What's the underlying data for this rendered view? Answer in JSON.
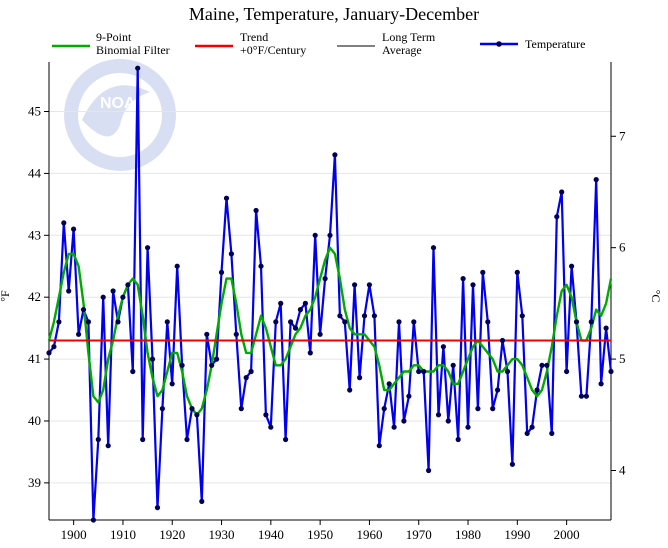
{
  "chart_data": {
    "type": "line",
    "title": "Maine, Temperature, January-December",
    "ylabel_left": "°F",
    "ylabel_right": "°C",
    "xlim": [
      1895,
      2009
    ],
    "ylim": [
      38.4,
      45.8
    ],
    "x_ticks": [
      1900,
      1910,
      1920,
      1930,
      1940,
      1950,
      1960,
      1970,
      1980,
      1990,
      2000
    ],
    "y_ticks_f": [
      39,
      40,
      41,
      42,
      43,
      44,
      45
    ],
    "y_ticks_c": [
      4,
      5,
      6,
      7
    ],
    "legend": {
      "filter_line1": "9-Point",
      "filter_line2": "Binomial Filter",
      "trend_line1": "Trend",
      "trend_line2": "+0°F/Century",
      "avg_line1": "Long Term",
      "avg_line2": "Average",
      "temp": "Temperature"
    },
    "colors": {
      "temperature": "#0000ee",
      "marker": "#000055",
      "filter": "#00aa00",
      "trend": "#ee0000",
      "average": "#808080"
    },
    "long_term_average": 41.3,
    "trend_value": 41.3,
    "series": [
      {
        "name": "Temperature",
        "x": [
          1895,
          1896,
          1897,
          1898,
          1899,
          1900,
          1901,
          1902,
          1903,
          1904,
          1905,
          1906,
          1907,
          1908,
          1909,
          1910,
          1911,
          1912,
          1913,
          1914,
          1915,
          1916,
          1917,
          1918,
          1919,
          1920,
          1921,
          1922,
          1923,
          1924,
          1925,
          1926,
          1927,
          1928,
          1929,
          1930,
          1931,
          1932,
          1933,
          1934,
          1935,
          1936,
          1937,
          1938,
          1939,
          1940,
          1941,
          1942,
          1943,
          1944,
          1945,
          1946,
          1947,
          1948,
          1949,
          1950,
          1951,
          1952,
          1953,
          1954,
          1955,
          1956,
          1957,
          1958,
          1959,
          1960,
          1961,
          1962,
          1963,
          1964,
          1965,
          1966,
          1967,
          1968,
          1969,
          1970,
          1971,
          1972,
          1973,
          1974,
          1975,
          1976,
          1977,
          1978,
          1979,
          1980,
          1981,
          1982,
          1983,
          1984,
          1985,
          1986,
          1987,
          1988,
          1989,
          1990,
          1991,
          1992,
          1993,
          1994,
          1995,
          1996,
          1997,
          1998,
          1999,
          2000,
          2001,
          2002,
          2003,
          2004,
          2005,
          2006,
          2007,
          2008,
          2009
        ],
        "values": [
          41.1,
          41.2,
          41.6,
          43.2,
          42.1,
          43.1,
          41.4,
          41.8,
          41.6,
          38.4,
          39.7,
          42.0,
          39.6,
          42.1,
          41.6,
          42.0,
          42.2,
          40.8,
          45.7,
          39.7,
          42.8,
          41.0,
          38.6,
          40.2,
          41.6,
          40.6,
          42.5,
          40.9,
          39.7,
          40.2,
          40.1,
          38.7,
          41.4,
          40.9,
          41.0,
          42.4,
          43.6,
          42.7,
          41.4,
          40.2,
          40.7,
          40.8,
          43.4,
          42.5,
          40.1,
          39.9,
          41.6,
          41.9,
          39.7,
          41.6,
          41.5,
          41.8,
          41.9,
          41.1,
          43.0,
          41.4,
          42.3,
          43.0,
          44.3,
          41.7,
          41.6,
          40.5,
          42.2,
          40.7,
          41.7,
          42.2,
          41.7,
          39.6,
          40.2,
          40.6,
          39.9,
          41.6,
          40.0,
          40.4,
          41.6,
          40.8,
          40.8,
          39.2,
          42.8,
          40.1,
          41.2,
          40.0,
          40.9,
          39.7,
          42.3,
          39.9,
          42.2,
          40.2,
          42.4,
          41.6,
          40.2,
          40.5,
          41.3,
          40.8,
          39.3,
          42.4,
          41.7,
          39.8,
          39.9,
          40.5,
          40.9,
          40.9,
          39.8,
          43.3,
          43.7,
          40.8,
          42.5,
          41.6,
          40.4,
          40.4,
          41.6,
          43.9,
          40.6,
          41.5,
          40.8
        ]
      },
      {
        "name": "9-Point Binomial Filter",
        "x": [
          1895,
          1896,
          1897,
          1898,
          1899,
          1900,
          1901,
          1902,
          1903,
          1904,
          1905,
          1906,
          1907,
          1908,
          1909,
          1910,
          1911,
          1912,
          1913,
          1914,
          1915,
          1916,
          1917,
          1918,
          1919,
          1920,
          1921,
          1922,
          1923,
          1924,
          1925,
          1926,
          1927,
          1928,
          1929,
          1930,
          1931,
          1932,
          1933,
          1934,
          1935,
          1936,
          1937,
          1938,
          1939,
          1940,
          1941,
          1942,
          1943,
          1944,
          1945,
          1946,
          1947,
          1948,
          1949,
          1950,
          1951,
          1952,
          1953,
          1954,
          1955,
          1956,
          1957,
          1958,
          1959,
          1960,
          1961,
          1962,
          1963,
          1964,
          1965,
          1966,
          1967,
          1968,
          1969,
          1970,
          1971,
          1972,
          1973,
          1974,
          1975,
          1976,
          1977,
          1978,
          1979,
          1980,
          1981,
          1982,
          1983,
          1984,
          1985,
          1986,
          1987,
          1988,
          1989,
          1990,
          1991,
          1992,
          1993,
          1994,
          1995,
          1996,
          1997,
          1998,
          1999,
          2000,
          2001,
          2002,
          2003,
          2004,
          2005,
          2006,
          2007,
          2008,
          2009
        ],
        "values": [
          41.3,
          41.6,
          42.0,
          42.4,
          42.7,
          42.7,
          42.5,
          41.9,
          41.1,
          40.4,
          40.3,
          40.5,
          41.0,
          41.3,
          41.7,
          42.0,
          42.2,
          42.3,
          42.2,
          41.7,
          41.1,
          40.7,
          40.4,
          40.5,
          40.8,
          41.1,
          41.1,
          40.8,
          40.4,
          40.2,
          40.1,
          40.2,
          40.5,
          40.9,
          41.4,
          41.9,
          42.3,
          42.3,
          41.9,
          41.4,
          41.1,
          41.1,
          41.4,
          41.7,
          41.5,
          41.2,
          40.9,
          40.9,
          41.0,
          41.2,
          41.4,
          41.5,
          41.7,
          41.8,
          42.0,
          42.3,
          42.6,
          42.8,
          42.7,
          42.3,
          41.8,
          41.5,
          41.4,
          41.4,
          41.4,
          41.3,
          41.2,
          40.9,
          40.5,
          40.5,
          40.6,
          40.7,
          40.8,
          40.8,
          40.9,
          40.9,
          40.8,
          40.8,
          40.8,
          40.9,
          40.9,
          40.8,
          40.6,
          40.6,
          40.8,
          41.0,
          41.2,
          41.3,
          41.2,
          41.1,
          41.0,
          40.8,
          40.8,
          40.9,
          41.0,
          41.0,
          40.9,
          40.7,
          40.5,
          40.4,
          40.5,
          40.8,
          41.2,
          41.7,
          42.1,
          42.2,
          42.0,
          41.6,
          41.3,
          41.3,
          41.5,
          41.8,
          41.7,
          41.9,
          42.3
        ]
      }
    ]
  }
}
